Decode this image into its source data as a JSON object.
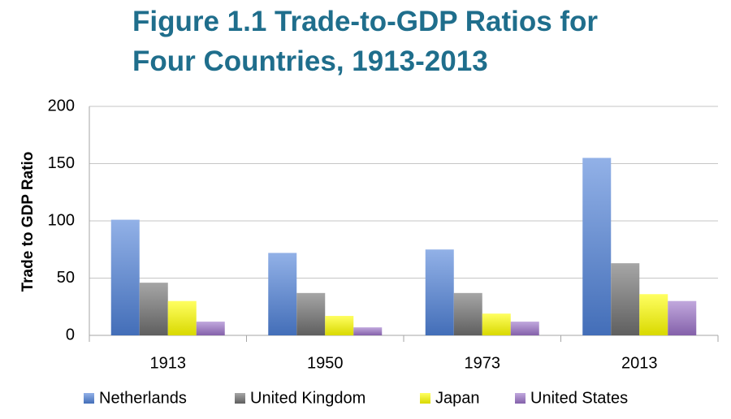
{
  "chart_data": {
    "type": "bar",
    "title_line1": "Figure 1.1 Trade-to-GDP Ratios for",
    "title_line2": "Four Countries, 1913-2013",
    "xlabel": "",
    "ylabel": "Trade to GDP Ratio",
    "categories": [
      "1913",
      "1950",
      "1973",
      "2013"
    ],
    "ylim": [
      0,
      200
    ],
    "yticks": [
      "0",
      "50",
      "100",
      "150",
      "200"
    ],
    "grid": true,
    "legend_position": "bottom",
    "series": [
      {
        "name": "Netherlands",
        "values": [
          101,
          72,
          75,
          155
        ],
        "color": "#4F81D9"
      },
      {
        "name": "United Kingdom",
        "values": [
          46,
          37,
          37,
          63
        ],
        "color": "#707070"
      },
      {
        "name": "Japan",
        "values": [
          30,
          17,
          19,
          36
        ],
        "color": "#FFFF00"
      },
      {
        "name": "United States",
        "values": [
          12,
          7,
          12,
          30
        ],
        "color": "#9B72C8"
      }
    ]
  }
}
